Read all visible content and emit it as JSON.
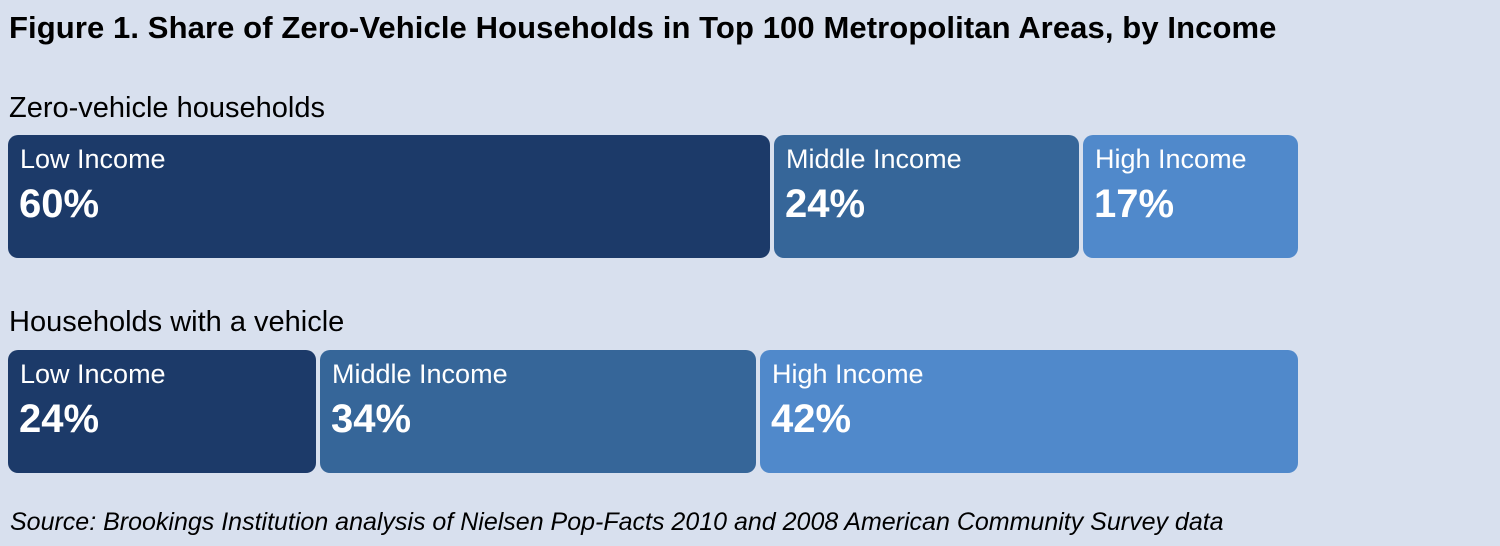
{
  "colors": {
    "background": "#d8e0ee",
    "low_income": "#1c3a69",
    "middle_income": "#366699",
    "high_income": "#5089cb",
    "segment_text": "#ffffff"
  },
  "chart_data": {
    "type": "bar",
    "stacked": true,
    "orientation": "horizontal",
    "title": "Figure 1. Share of Zero-Vehicle Households in Top 100 Metropolitan Areas, by Income",
    "source": "Source: Brookings Institution analysis of Nielsen Pop-Facts 2010 and 2008 American Community Survey data",
    "unit": "%",
    "groups": [
      {
        "label": "Zero-vehicle households",
        "segments": [
          {
            "name": "Low Income",
            "value": 60,
            "display": "60%",
            "color": "#1c3a69"
          },
          {
            "name": "Middle Income",
            "value": 24,
            "display": "24%",
            "color": "#366699"
          },
          {
            "name": "High Income",
            "value": 17,
            "display": "17%",
            "color": "#5089cb"
          }
        ]
      },
      {
        "label": "Households with a vehicle",
        "segments": [
          {
            "name": "Low Income",
            "value": 24,
            "display": "24%",
            "color": "#1c3a69"
          },
          {
            "name": "Middle Income",
            "value": 34,
            "display": "34%",
            "color": "#366699"
          },
          {
            "name": "High Income",
            "value": 42,
            "display": "42%",
            "color": "#5089cb"
          }
        ]
      }
    ]
  }
}
